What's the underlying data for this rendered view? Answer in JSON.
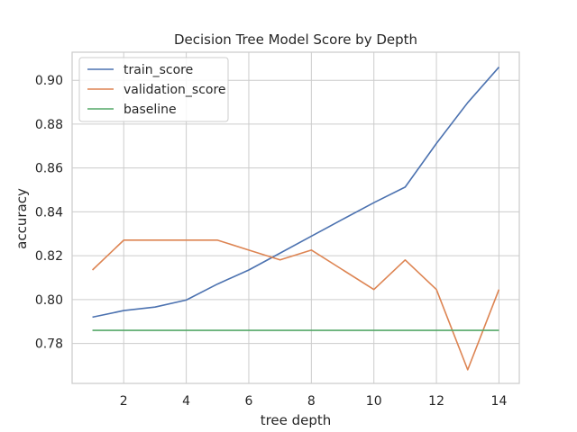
{
  "chart_data": {
    "type": "line",
    "title": "Decision Tree Model Score by Depth",
    "xlabel": "tree depth",
    "ylabel": "accuracy",
    "xlim": [
      0.35,
      14.65
    ],
    "ylim": [
      0.7618,
      0.9128
    ],
    "x_ticks": [
      2,
      4,
      6,
      8,
      10,
      12,
      14
    ],
    "y_ticks": [
      0.78,
      0.8,
      0.82,
      0.84,
      0.86,
      0.88,
      0.9
    ],
    "y_tick_labels": [
      "0.78",
      "0.80",
      "0.82",
      "0.84",
      "0.86",
      "0.88",
      "0.90"
    ],
    "grid": true,
    "legend_position": "top-left",
    "x": [
      1,
      2,
      3,
      4,
      5,
      6,
      7,
      8,
      9,
      10,
      11,
      12,
      13,
      14
    ],
    "series": [
      {
        "name": "train_score",
        "color": "#4c72b0",
        "values": [
          0.792,
          0.795,
          0.7966,
          0.7998,
          0.8071,
          0.8135,
          0.8212,
          0.8289,
          0.8366,
          0.8442,
          0.8513,
          0.8712,
          0.8898,
          0.906
        ]
      },
      {
        "name": "validation_score",
        "color": "#dd8452",
        "values": [
          0.8135,
          0.8271,
          0.8271,
          0.8271,
          0.8271,
          0.8226,
          0.8181,
          0.8226,
          0.8136,
          0.8046,
          0.8181,
          0.8046,
          0.768,
          0.8046
        ]
      },
      {
        "name": "baseline",
        "color": "#55a868",
        "values": [
          0.786,
          0.786,
          0.786,
          0.786,
          0.786,
          0.786,
          0.786,
          0.786,
          0.786,
          0.786,
          0.786,
          0.786,
          0.786,
          0.786
        ]
      }
    ]
  }
}
